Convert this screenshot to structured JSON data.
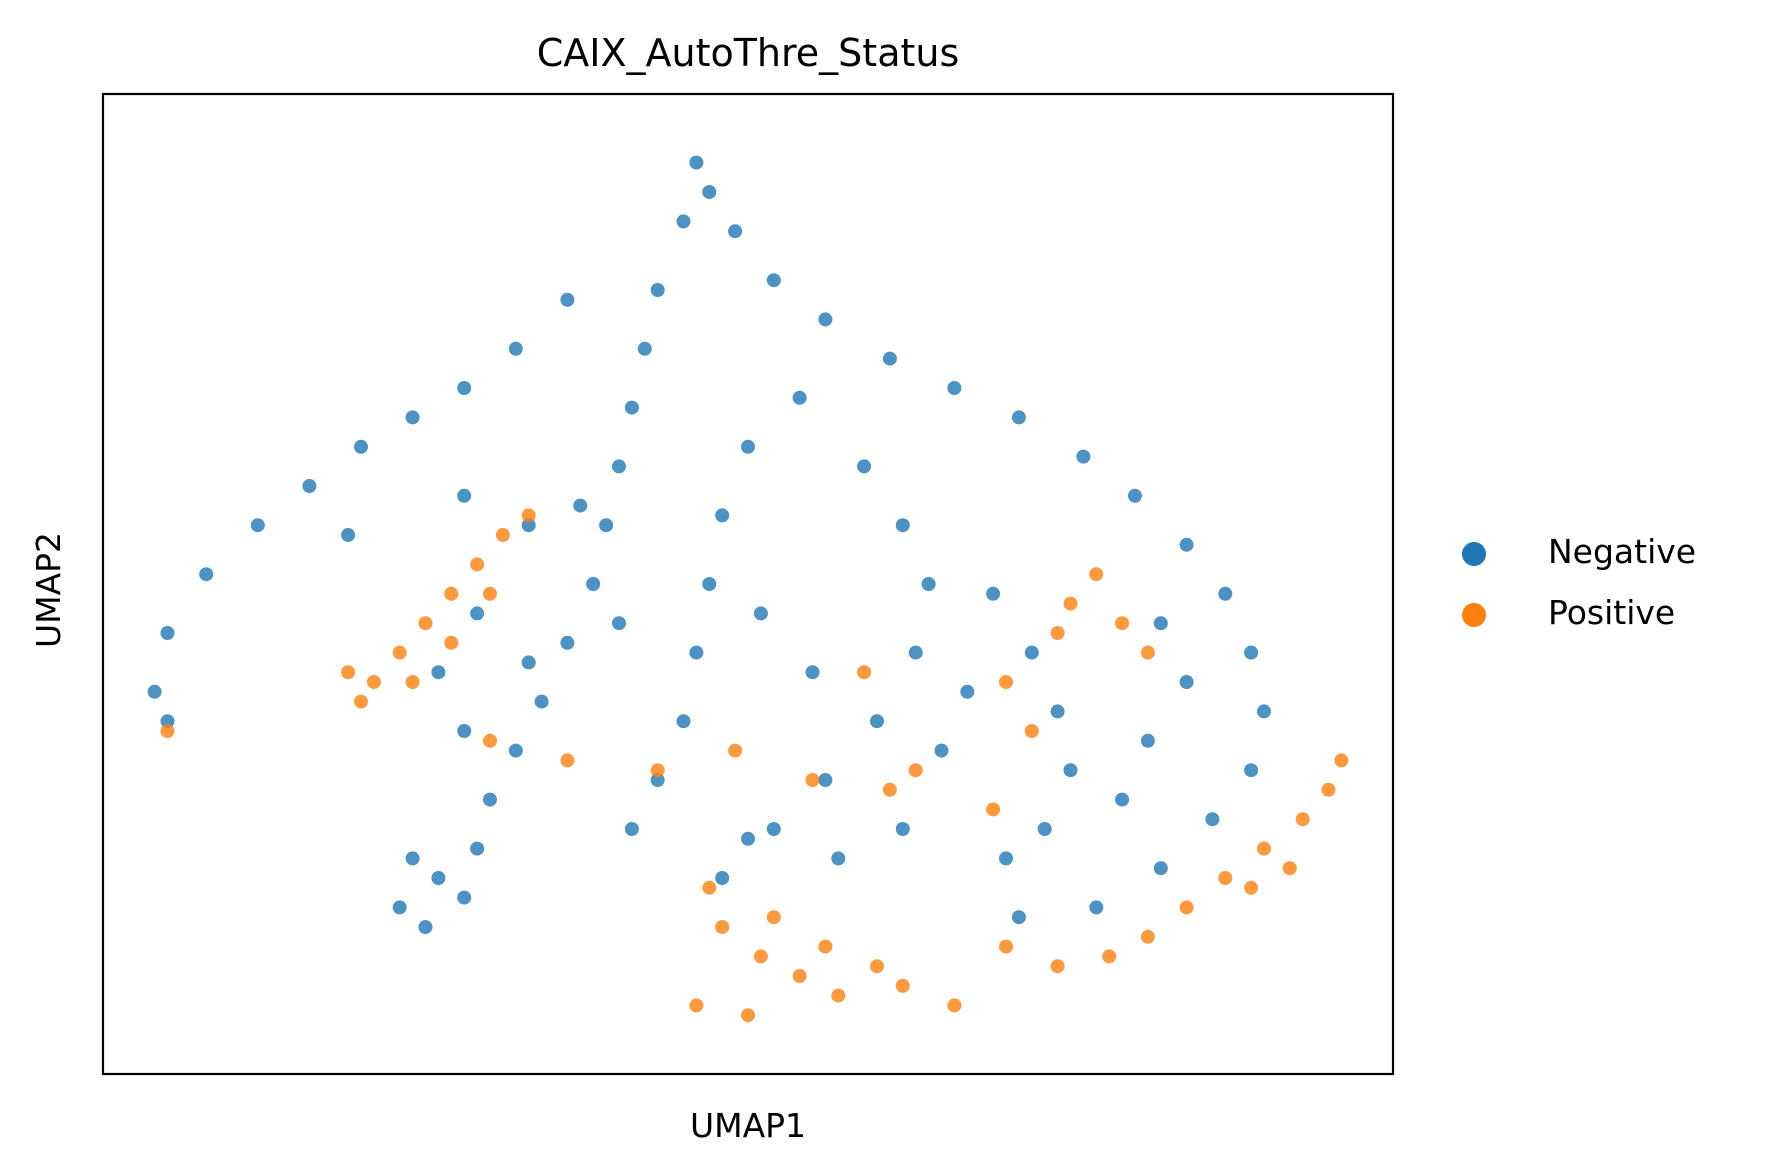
{
  "chart_data": {
    "type": "scatter",
    "title": "CAIX_AutoThre_Status",
    "xlabel": "UMAP1",
    "ylabel": "UMAP2",
    "xlim": [
      0,
      10
    ],
    "ylim": [
      0,
      10
    ],
    "grid": false,
    "legend_placement": "right",
    "series": [
      {
        "name": "Negative",
        "color": "#1f77b4",
        "points": [
          [
            4.6,
            9.3
          ],
          [
            4.7,
            9.0
          ],
          [
            4.9,
            8.6
          ],
          [
            5.2,
            8.1
          ],
          [
            5.6,
            7.7
          ],
          [
            6.1,
            7.3
          ],
          [
            6.6,
            7.0
          ],
          [
            7.1,
            6.7
          ],
          [
            7.6,
            6.3
          ],
          [
            8.0,
            5.9
          ],
          [
            8.4,
            5.4
          ],
          [
            8.7,
            4.9
          ],
          [
            8.9,
            4.3
          ],
          [
            9.0,
            3.7
          ],
          [
            8.9,
            3.1
          ],
          [
            8.6,
            2.6
          ],
          [
            8.2,
            2.1
          ],
          [
            7.7,
            1.7
          ],
          [
            7.1,
            1.6
          ],
          [
            4.5,
            8.7
          ],
          [
            4.3,
            8.0
          ],
          [
            4.2,
            7.4
          ],
          [
            4.1,
            6.8
          ],
          [
            4.0,
            6.2
          ],
          [
            3.9,
            5.6
          ],
          [
            3.8,
            5.0
          ],
          [
            3.6,
            4.4
          ],
          [
            3.4,
            3.8
          ],
          [
            3.2,
            3.3
          ],
          [
            3.0,
            2.8
          ],
          [
            3.6,
            7.9
          ],
          [
            3.2,
            7.4
          ],
          [
            2.8,
            7.0
          ],
          [
            2.4,
            6.7
          ],
          [
            2.0,
            6.4
          ],
          [
            1.6,
            6.0
          ],
          [
            1.2,
            5.6
          ],
          [
            0.8,
            5.1
          ],
          [
            0.5,
            4.5
          ],
          [
            0.4,
            3.9
          ],
          [
            0.5,
            3.6
          ],
          [
            5.4,
            6.9
          ],
          [
            5.0,
            6.4
          ],
          [
            4.8,
            5.7
          ],
          [
            4.7,
            5.0
          ],
          [
            4.6,
            4.3
          ],
          [
            4.5,
            3.6
          ],
          [
            4.3,
            3.0
          ],
          [
            4.1,
            2.5
          ],
          [
            5.9,
            6.2
          ],
          [
            6.2,
            5.6
          ],
          [
            6.4,
            5.0
          ],
          [
            6.3,
            4.3
          ],
          [
            6.0,
            3.6
          ],
          [
            5.6,
            3.0
          ],
          [
            5.2,
            2.5
          ],
          [
            6.9,
            4.9
          ],
          [
            7.2,
            4.3
          ],
          [
            7.4,
            3.7
          ],
          [
            7.5,
            3.1
          ],
          [
            7.3,
            2.5
          ],
          [
            8.2,
            4.6
          ],
          [
            8.4,
            4.0
          ],
          [
            8.1,
            3.4
          ],
          [
            7.9,
            2.8
          ],
          [
            2.9,
            4.7
          ],
          [
            2.6,
            4.1
          ],
          [
            2.8,
            3.5
          ],
          [
            3.3,
            4.2
          ],
          [
            4.0,
            4.6
          ],
          [
            5.1,
            4.7
          ],
          [
            5.5,
            4.1
          ],
          [
            6.7,
            3.9
          ],
          [
            6.5,
            3.3
          ],
          [
            7.0,
            2.2
          ],
          [
            2.4,
            2.2
          ],
          [
            2.6,
            2.0
          ],
          [
            2.8,
            1.8
          ],
          [
            2.3,
            1.7
          ],
          [
            2.5,
            1.5
          ],
          [
            2.9,
            2.3
          ],
          [
            4.8,
            2.0
          ],
          [
            5.0,
            2.4
          ],
          [
            5.7,
            2.2
          ],
          [
            6.2,
            2.5
          ],
          [
            3.7,
            5.8
          ],
          [
            3.3,
            5.6
          ],
          [
            2.8,
            5.9
          ],
          [
            1.9,
            5.5
          ]
        ]
      },
      {
        "name": "Positive",
        "color": "#ff7f0e",
        "points": [
          [
            1.9,
            4.1
          ],
          [
            2.1,
            4.0
          ],
          [
            2.3,
            4.3
          ],
          [
            2.5,
            4.6
          ],
          [
            2.7,
            4.9
          ],
          [
            2.9,
            5.2
          ],
          [
            3.1,
            5.5
          ],
          [
            3.3,
            5.7
          ],
          [
            2.0,
            3.8
          ],
          [
            2.4,
            4.0
          ],
          [
            2.7,
            4.4
          ],
          [
            3.0,
            4.9
          ],
          [
            4.8,
            1.5
          ],
          [
            5.1,
            1.2
          ],
          [
            5.4,
            1.0
          ],
          [
            5.7,
            0.8
          ],
          [
            5.2,
            1.6
          ],
          [
            5.6,
            1.3
          ],
          [
            6.0,
            1.1
          ],
          [
            4.6,
            0.7
          ],
          [
            5.0,
            0.6
          ],
          [
            6.2,
            0.9
          ],
          [
            7.0,
            1.3
          ],
          [
            7.4,
            1.1
          ],
          [
            7.8,
            1.2
          ],
          [
            8.1,
            1.4
          ],
          [
            8.4,
            1.7
          ],
          [
            8.7,
            2.0
          ],
          [
            9.0,
            2.3
          ],
          [
            9.3,
            2.6
          ],
          [
            9.5,
            2.9
          ],
          [
            9.6,
            3.2
          ],
          [
            9.2,
            2.1
          ],
          [
            8.9,
            1.9
          ],
          [
            6.6,
            0.7
          ],
          [
            7.5,
            4.8
          ],
          [
            7.7,
            5.1
          ],
          [
            7.9,
            4.6
          ],
          [
            8.1,
            4.3
          ],
          [
            7.4,
            4.5
          ],
          [
            3.0,
            3.4
          ],
          [
            3.6,
            3.2
          ],
          [
            4.3,
            3.1
          ],
          [
            5.5,
            3.0
          ],
          [
            6.1,
            2.9
          ],
          [
            6.3,
            3.1
          ],
          [
            7.2,
            3.5
          ],
          [
            7.0,
            4.0
          ],
          [
            4.9,
            3.3
          ],
          [
            5.9,
            4.1
          ],
          [
            0.5,
            3.5
          ],
          [
            4.7,
            1.9
          ],
          [
            6.9,
            2.7
          ]
        ]
      }
    ]
  }
}
